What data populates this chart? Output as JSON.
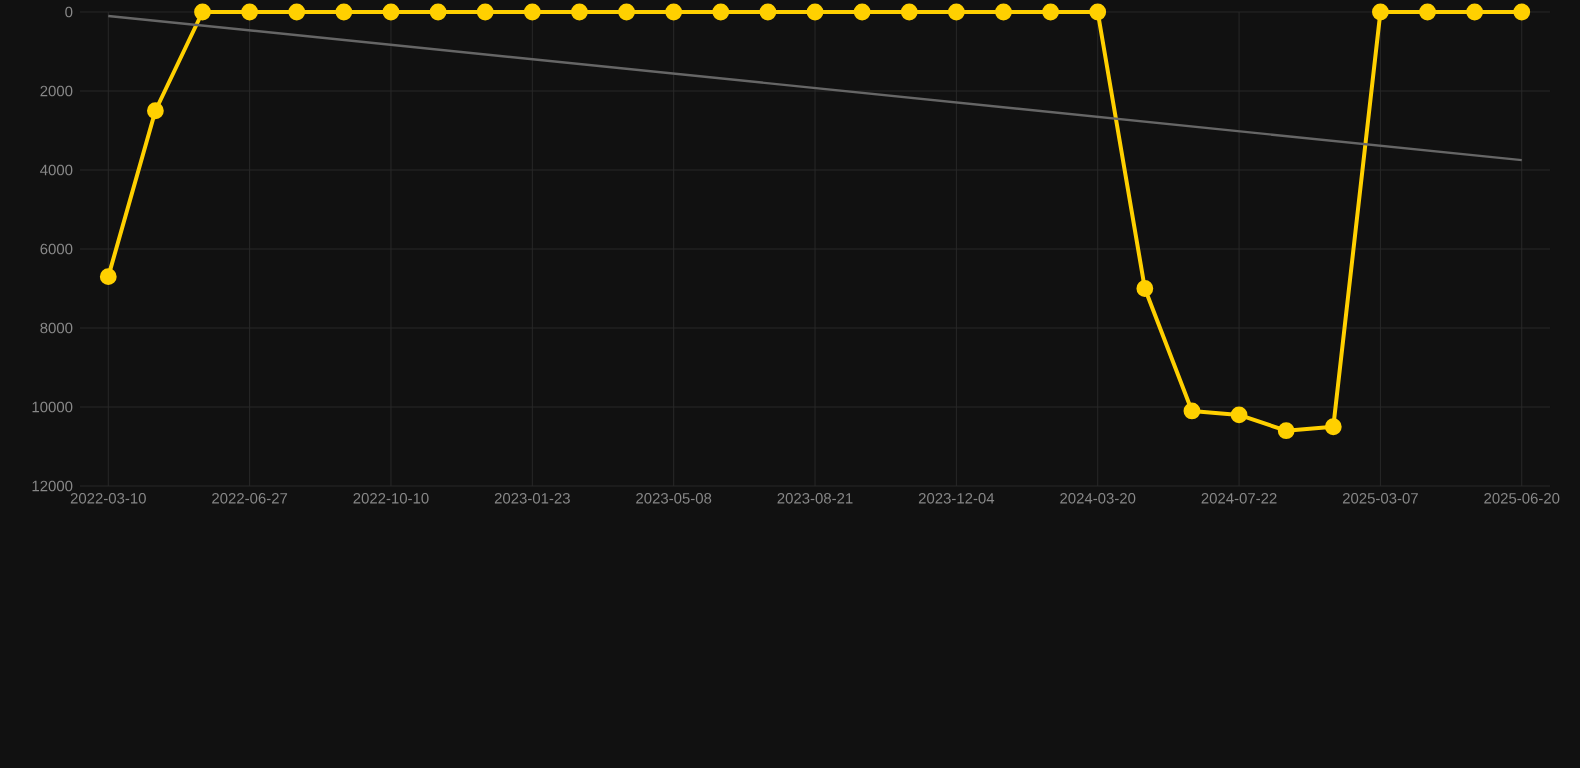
{
  "chart_data": {
    "type": "line",
    "categories": [
      "2022-03-10",
      null,
      null,
      "2022-06-27",
      null,
      null,
      "2022-10-10",
      null,
      null,
      "2023-01-23",
      null,
      null,
      "2023-05-08",
      null,
      null,
      "2023-08-21",
      null,
      null,
      "2023-12-04",
      null,
      null,
      "2024-03-20",
      null,
      null,
      "2024-07-22",
      null,
      null,
      "2025-03-07",
      null,
      null,
      "2025-06-20"
    ],
    "series": [
      {
        "color": "#ffd000",
        "marker": "circle",
        "values": [
          6700,
          2500,
          0,
          0,
          0,
          0,
          0,
          0,
          0,
          0,
          0,
          0,
          0,
          0,
          0,
          0,
          0,
          0,
          0,
          0,
          0,
          0,
          7000,
          10100,
          10200,
          10600,
          10500,
          0,
          0,
          0,
          0
        ]
      },
      {
        "color": "#666666",
        "marker": "none",
        "values": [
          100,
          null,
          null,
          null,
          null,
          null,
          null,
          null,
          null,
          null,
          null,
          null,
          null,
          null,
          null,
          null,
          null,
          null,
          null,
          null,
          null,
          null,
          null,
          null,
          null,
          null,
          null,
          null,
          null,
          null,
          3750
        ]
      }
    ],
    "ylim": [
      12000,
      0
    ],
    "yticks": [
      0,
      2000,
      4000,
      6000,
      8000,
      10000,
      12000
    ],
    "grid": true
  }
}
